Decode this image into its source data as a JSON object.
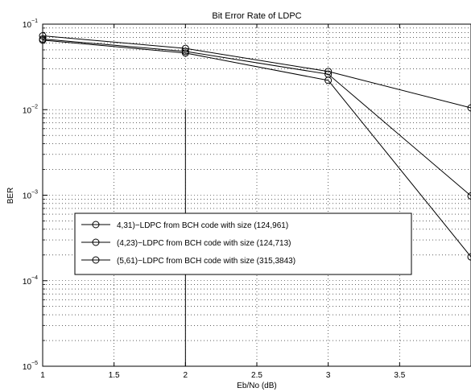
{
  "chart_data": {
    "type": "line",
    "title": "Bit Error Rate of LDPC",
    "xlabel": "Eb/No (dB)",
    "ylabel": "BER",
    "xlim": [
      1,
      4
    ],
    "ylim": [
      1e-05,
      0.1
    ],
    "yscale": "log",
    "grid": true,
    "x_ticks": [
      {
        "value": 1,
        "label": "1"
      },
      {
        "value": 1.5,
        "label": "1.5"
      },
      {
        "value": 2,
        "label": "2"
      },
      {
        "value": 2.5,
        "label": "2.5"
      },
      {
        "value": 3,
        "label": "3"
      },
      {
        "value": 3.5,
        "label": "3.5"
      }
    ],
    "y_ticks": [
      {
        "value": 0.1,
        "base": "10",
        "exp": "−1"
      },
      {
        "value": 0.01,
        "base": "10",
        "exp": "−2"
      },
      {
        "value": 0.001,
        "base": "10",
        "exp": "−3"
      },
      {
        "value": 0.0001,
        "base": "10",
        "exp": "−4"
      },
      {
        "value": 1e-05,
        "base": "10",
        "exp": "−5"
      }
    ],
    "x": [
      1,
      2,
      3,
      4
    ],
    "series": [
      {
        "name": "4,31)−LDPC from BCH code with size (124,961)",
        "values": [
          0.073,
          0.052,
          0.028,
          0.0105
        ]
      },
      {
        "name": "(4,23)−LDPC from BCH code with size (124,713)",
        "values": [
          0.067,
          0.048,
          0.026,
          0.00098
        ]
      },
      {
        "name": "(5,61)−LDPC from BCH code with size (315,3843)",
        "values": [
          0.065,
          0.046,
          0.022,
          0.00019
        ]
      }
    ],
    "annotation_line": {
      "x": 2,
      "y_from": 1e-05,
      "y_to": 0.01
    },
    "legend_position": "center-left"
  }
}
